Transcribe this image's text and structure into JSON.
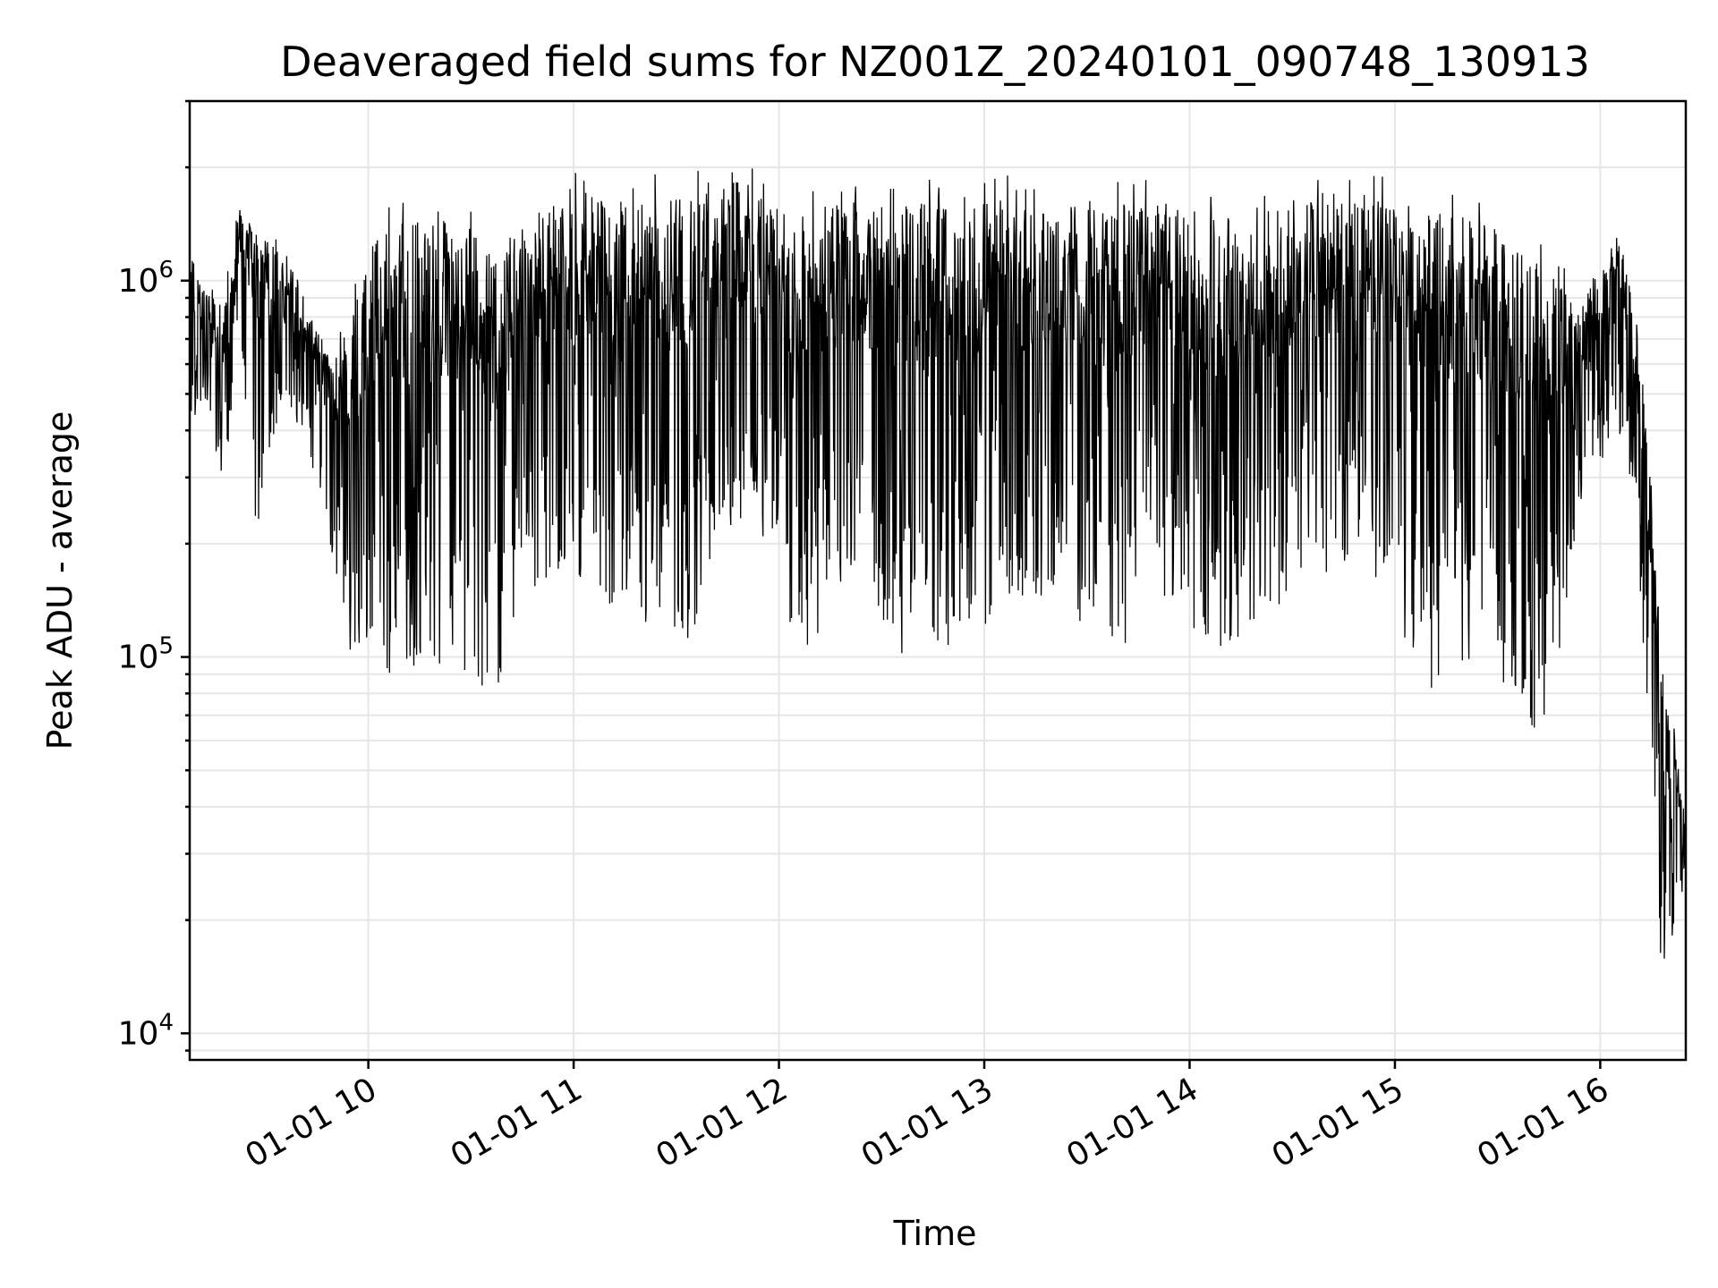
{
  "chart_data": {
    "type": "line",
    "title": "Deaveraged field sums for NZ001Z_20240101_090748_130913",
    "xlabel": "Time",
    "ylabel": "Peak ADU - average",
    "x_axis": {
      "type": "time",
      "start": "2024-01-01T09:07:48",
      "end": "2024-01-01T16:25:00",
      "ticks": [
        {
          "time": "2024-01-01T10:00:00",
          "label": "01-01 10"
        },
        {
          "time": "2024-01-01T11:00:00",
          "label": "01-01 11"
        },
        {
          "time": "2024-01-01T12:00:00",
          "label": "01-01 12"
        },
        {
          "time": "2024-01-01T13:00:00",
          "label": "01-01 13"
        },
        {
          "time": "2024-01-01T14:00:00",
          "label": "01-01 14"
        },
        {
          "time": "2024-01-01T15:00:00",
          "label": "01-01 15"
        },
        {
          "time": "2024-01-01T16:00:00",
          "label": "01-01 16"
        }
      ]
    },
    "y_axis": {
      "scale": "log",
      "ylim": [
        8500,
        3000000
      ],
      "major_ticks": [
        {
          "value": 10000,
          "base": "10",
          "exp": "4"
        },
        {
          "value": 100000,
          "base": "10",
          "exp": "5"
        },
        {
          "value": 1000000,
          "base": "10",
          "exp": "6"
        }
      ]
    },
    "grid": true,
    "series": [
      {
        "color": "#000000",
        "envelope": [
          {
            "time": "2024-01-01T09:08:00",
            "high": 1300000,
            "low": 400000
          },
          {
            "time": "2024-01-01T09:12:00",
            "high": 950000,
            "low": 500000
          },
          {
            "time": "2024-01-01T09:18:00",
            "high": 1000000,
            "low": 260000
          },
          {
            "time": "2024-01-01T09:22:00",
            "high": 1650000,
            "low": 700000
          },
          {
            "time": "2024-01-01T09:28:00",
            "high": 1450000,
            "low": 190000
          },
          {
            "time": "2024-01-01T09:35:00",
            "high": 1350000,
            "low": 500000
          },
          {
            "time": "2024-01-01T09:42:00",
            "high": 900000,
            "low": 350000
          },
          {
            "time": "2024-01-01T09:48:00",
            "high": 700000,
            "low": 220000
          },
          {
            "time": "2024-01-01T09:55:00",
            "high": 1000000,
            "low": 95000
          },
          {
            "time": "2024-01-01T10:05:00",
            "high": 1700000,
            "low": 90000
          },
          {
            "time": "2024-01-01T10:15:00",
            "high": 1700000,
            "low": 95000
          },
          {
            "time": "2024-01-01T10:25:00",
            "high": 1750000,
            "low": 90000
          },
          {
            "time": "2024-01-01T10:37:00",
            "high": 1400000,
            "low": 80000
          },
          {
            "time": "2024-01-01T10:48:00",
            "high": 1700000,
            "low": 150000
          },
          {
            "time": "2024-01-01T11:00:00",
            "high": 1950000,
            "low": 150000
          },
          {
            "time": "2024-01-01T11:15:00",
            "high": 1900000,
            "low": 130000
          },
          {
            "time": "2024-01-01T11:35:00",
            "high": 1950000,
            "low": 110000
          },
          {
            "time": "2024-01-01T11:42:00",
            "high": 2300000,
            "low": 230000
          },
          {
            "time": "2024-01-01T12:00:00",
            "high": 1800000,
            "low": 200000
          },
          {
            "time": "2024-01-01T12:05:00",
            "high": 1700000,
            "low": 95000
          },
          {
            "time": "2024-01-01T12:20:00",
            "high": 1850000,
            "low": 150000
          },
          {
            "time": "2024-01-01T12:40:00",
            "high": 1900000,
            "low": 90000
          },
          {
            "time": "2024-01-01T13:00:00",
            "high": 2000000,
            "low": 120000
          },
          {
            "time": "2024-01-01T13:20:00",
            "high": 1800000,
            "low": 150000
          },
          {
            "time": "2024-01-01T13:38:00",
            "high": 1850000,
            "low": 95000
          },
          {
            "time": "2024-01-01T13:50:00",
            "high": 1950000,
            "low": 150000
          },
          {
            "time": "2024-01-01T14:10:00",
            "high": 1700000,
            "low": 97000
          },
          {
            "time": "2024-01-01T14:30:00",
            "high": 1800000,
            "low": 150000
          },
          {
            "time": "2024-01-01T14:50:00",
            "high": 1950000,
            "low": 180000
          },
          {
            "time": "2024-01-01T15:10:00",
            "high": 1800000,
            "low": 82000
          },
          {
            "time": "2024-01-01T15:25:00",
            "high": 1700000,
            "low": 100000
          },
          {
            "time": "2024-01-01T15:35:00",
            "high": 1500000,
            "low": 62000
          },
          {
            "time": "2024-01-01T15:45:00",
            "high": 1250000,
            "low": 65000
          },
          {
            "time": "2024-01-01T15:55:00",
            "high": 950000,
            "low": 250000
          },
          {
            "time": "2024-01-01T16:05:00",
            "high": 1400000,
            "low": 400000
          },
          {
            "time": "2024-01-01T16:10:00",
            "high": 950000,
            "low": 250000
          },
          {
            "time": "2024-01-01T16:15:00",
            "high": 320000,
            "low": 45000
          },
          {
            "time": "2024-01-01T16:18:00",
            "high": 95000,
            "low": 13500
          },
          {
            "time": "2024-01-01T16:21:00",
            "high": 70000,
            "low": 17000
          },
          {
            "time": "2024-01-01T16:25:00",
            "high": 45000,
            "low": 25000
          }
        ]
      }
    ]
  }
}
